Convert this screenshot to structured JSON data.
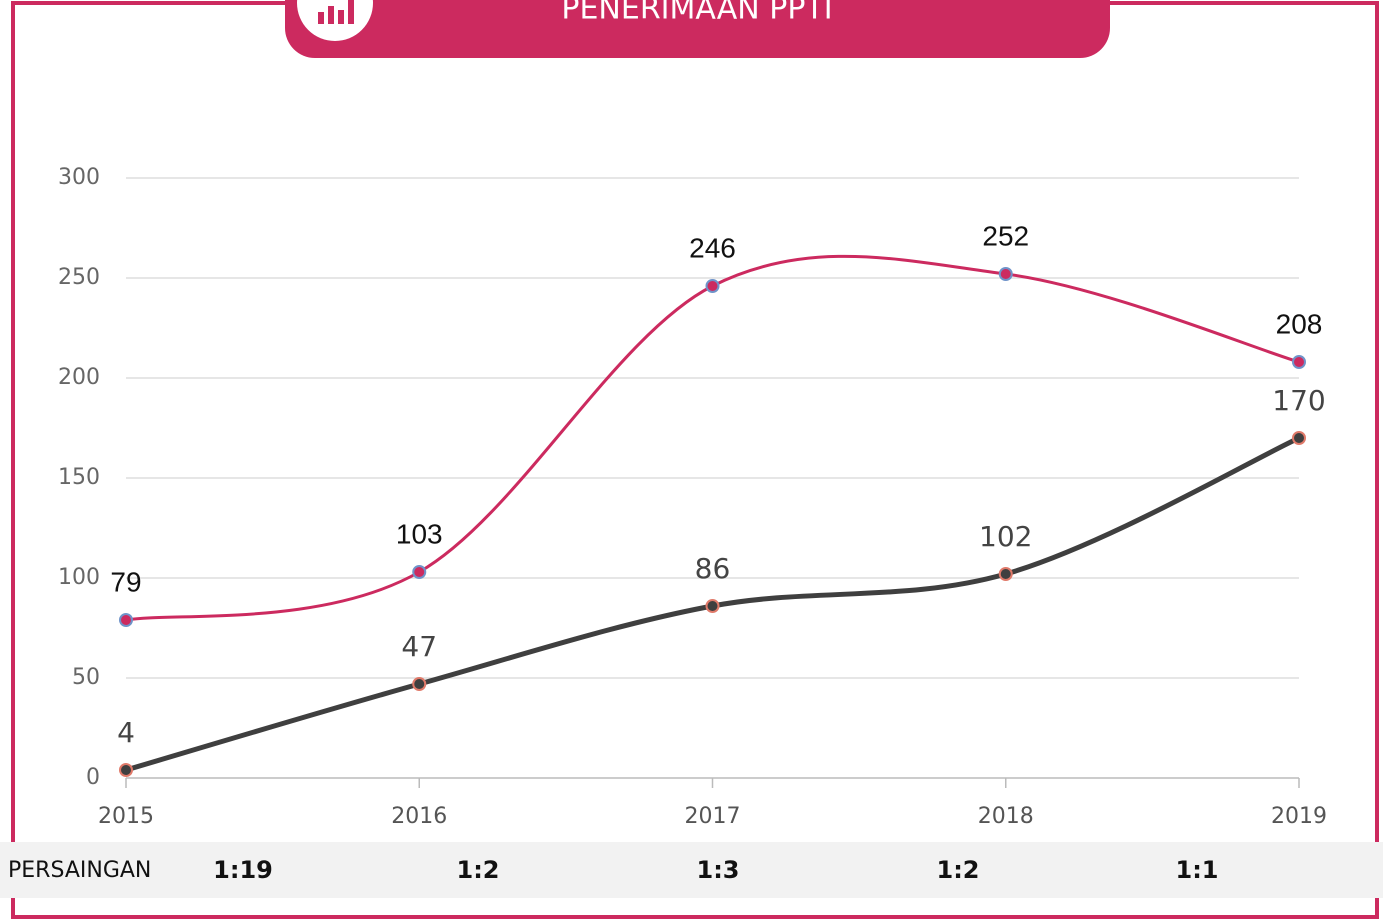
{
  "chart_data": {
    "type": "line",
    "title": "PENERIMAAN PPTI",
    "categories": [
      "2015",
      "2016",
      "2017",
      "2018",
      "2019"
    ],
    "series": [
      {
        "color": "#cc2a5f",
        "marker_stroke": "#6f93c9",
        "label_color": "#111111",
        "values": [
          79,
          103,
          246,
          252,
          208
        ]
      },
      {
        "color": "#3f3f3f",
        "marker_stroke": "#e07a6a",
        "label_color": "#444444",
        "values": [
          4,
          47,
          86,
          102,
          170
        ]
      }
    ],
    "ylim": [
      0,
      300
    ],
    "yticks": [
      0,
      50,
      100,
      150,
      200,
      250,
      300
    ],
    "grid": true,
    "smooth": true
  },
  "competition": {
    "label": "PERSAINGAN",
    "values": [
      "1:19",
      "1:2",
      "1:3",
      "1:2",
      "1:1"
    ]
  }
}
